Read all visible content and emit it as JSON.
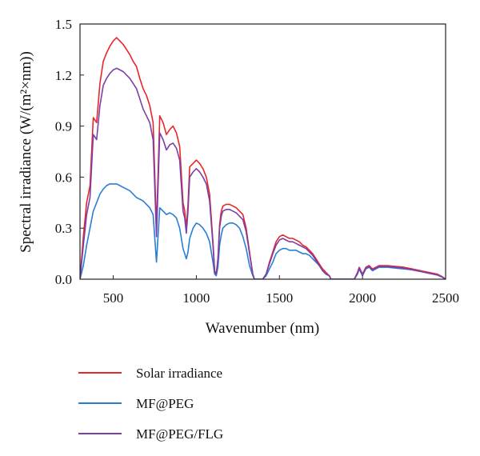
{
  "chart_data": {
    "type": "line",
    "title": "",
    "xlabel": "Wavenumber (nm)",
    "ylabel": "Spectral irradiance (W/(m²×nm))",
    "xlim": [
      300,
      2500
    ],
    "ylim": [
      0.0,
      1.5
    ],
    "xticks": [
      500,
      1000,
      1500,
      2000,
      2500
    ],
    "xtick_labels": [
      "500",
      "1000",
      "1500",
      "2000",
      "2500"
    ],
    "yticks": [
      0.0,
      0.3,
      0.6,
      0.9,
      1.2,
      1.5
    ],
    "ytick_labels": [
      "0.0",
      "0.3",
      "0.6",
      "0.9",
      "1.2",
      "1.5"
    ],
    "grid": false,
    "legend_position": "below",
    "series": [
      {
        "name": "Solar irradiance",
        "color": "#e8262a",
        "x": [
          300,
          320,
          340,
          360,
          380,
          400,
          420,
          440,
          460,
          480,
          500,
          520,
          540,
          560,
          580,
          600,
          620,
          640,
          660,
          680,
          700,
          720,
          740,
          760,
          780,
          800,
          820,
          840,
          860,
          880,
          900,
          920,
          930,
          940,
          950,
          960,
          980,
          1000,
          1020,
          1040,
          1060,
          1080,
          1100,
          1110,
          1120,
          1130,
          1140,
          1150,
          1160,
          1180,
          1200,
          1220,
          1240,
          1260,
          1280,
          1300,
          1320,
          1340,
          1350,
          1360,
          1370,
          1380,
          1400,
          1420,
          1440,
          1460,
          1480,
          1500,
          1520,
          1540,
          1560,
          1580,
          1600,
          1620,
          1640,
          1660,
          1680,
          1700,
          1720,
          1740,
          1760,
          1780,
          1800,
          1810,
          1820,
          1850,
          1900,
          1950,
          1970,
          1980,
          1990,
          2000,
          2020,
          2040,
          2060,
          2080,
          2100,
          2150,
          2200,
          2250,
          2300,
          2350,
          2400,
          2450,
          2480,
          2500
        ],
        "y": [
          0.0,
          0.25,
          0.45,
          0.55,
          0.95,
          0.92,
          1.15,
          1.28,
          1.33,
          1.37,
          1.4,
          1.42,
          1.4,
          1.38,
          1.35,
          1.32,
          1.28,
          1.25,
          1.18,
          1.12,
          1.08,
          1.02,
          0.92,
          0.3,
          0.96,
          0.92,
          0.85,
          0.88,
          0.9,
          0.86,
          0.78,
          0.45,
          0.4,
          0.3,
          0.44,
          0.66,
          0.68,
          0.7,
          0.68,
          0.65,
          0.6,
          0.5,
          0.22,
          0.05,
          0.03,
          0.12,
          0.32,
          0.4,
          0.43,
          0.44,
          0.44,
          0.43,
          0.42,
          0.4,
          0.38,
          0.3,
          0.16,
          0.03,
          0.0,
          0.0,
          0.0,
          0.0,
          0.0,
          0.03,
          0.1,
          0.16,
          0.22,
          0.25,
          0.26,
          0.25,
          0.24,
          0.24,
          0.23,
          0.22,
          0.2,
          0.19,
          0.17,
          0.15,
          0.12,
          0.09,
          0.06,
          0.04,
          0.02,
          0.0,
          0.0,
          0.0,
          0.0,
          0.0,
          0.04,
          0.07,
          0.05,
          0.03,
          0.07,
          0.08,
          0.06,
          0.07,
          0.08,
          0.08,
          0.075,
          0.07,
          0.06,
          0.05,
          0.04,
          0.03,
          0.015,
          0.0
        ]
      },
      {
        "name": "MF@PEG",
        "color": "#2a7fd4",
        "x": [
          300,
          320,
          340,
          360,
          380,
          400,
          420,
          440,
          460,
          480,
          500,
          520,
          540,
          560,
          580,
          600,
          620,
          640,
          660,
          680,
          700,
          720,
          740,
          760,
          780,
          800,
          820,
          840,
          860,
          880,
          900,
          920,
          930,
          940,
          950,
          960,
          980,
          1000,
          1020,
          1040,
          1060,
          1080,
          1100,
          1110,
          1120,
          1130,
          1140,
          1150,
          1160,
          1180,
          1200,
          1220,
          1240,
          1260,
          1280,
          1300,
          1320,
          1340,
          1350,
          1360,
          1370,
          1380,
          1400,
          1420,
          1440,
          1460,
          1480,
          1500,
          1520,
          1540,
          1560,
          1580,
          1600,
          1620,
          1640,
          1660,
          1680,
          1700,
          1720,
          1740,
          1760,
          1780,
          1800,
          1810,
          1820,
          1850,
          1900,
          1950,
          1970,
          1980,
          1990,
          2000,
          2020,
          2040,
          2060,
          2080,
          2100,
          2150,
          2200,
          2250,
          2300,
          2350,
          2400,
          2450,
          2480,
          2500
        ],
        "y": [
          0.0,
          0.08,
          0.2,
          0.3,
          0.4,
          0.45,
          0.5,
          0.53,
          0.55,
          0.56,
          0.56,
          0.56,
          0.55,
          0.54,
          0.53,
          0.52,
          0.5,
          0.48,
          0.47,
          0.46,
          0.44,
          0.42,
          0.38,
          0.1,
          0.42,
          0.4,
          0.38,
          0.39,
          0.38,
          0.36,
          0.3,
          0.18,
          0.15,
          0.12,
          0.16,
          0.24,
          0.3,
          0.33,
          0.32,
          0.3,
          0.27,
          0.22,
          0.1,
          0.03,
          0.02,
          0.07,
          0.2,
          0.26,
          0.3,
          0.32,
          0.33,
          0.33,
          0.32,
          0.3,
          0.25,
          0.18,
          0.08,
          0.02,
          0.0,
          0.0,
          0.0,
          0.0,
          0.0,
          0.02,
          0.06,
          0.1,
          0.15,
          0.17,
          0.18,
          0.18,
          0.17,
          0.17,
          0.17,
          0.16,
          0.15,
          0.15,
          0.14,
          0.12,
          0.1,
          0.08,
          0.05,
          0.03,
          0.02,
          0.0,
          0.0,
          0.0,
          0.0,
          0.0,
          0.03,
          0.06,
          0.04,
          0.02,
          0.06,
          0.07,
          0.05,
          0.06,
          0.07,
          0.07,
          0.065,
          0.06,
          0.055,
          0.045,
          0.035,
          0.025,
          0.012,
          0.0
        ]
      },
      {
        "name": "MF@PEG/FLG",
        "color": "#7b3fa8",
        "x": [
          300,
          320,
          340,
          360,
          380,
          400,
          420,
          440,
          460,
          480,
          500,
          520,
          540,
          560,
          580,
          600,
          620,
          640,
          660,
          680,
          700,
          720,
          740,
          760,
          780,
          800,
          820,
          840,
          860,
          880,
          900,
          920,
          930,
          940,
          950,
          960,
          980,
          1000,
          1020,
          1040,
          1060,
          1080,
          1100,
          1110,
          1120,
          1130,
          1140,
          1150,
          1160,
          1180,
          1200,
          1220,
          1240,
          1260,
          1280,
          1300,
          1320,
          1340,
          1350,
          1360,
          1370,
          1380,
          1400,
          1420,
          1440,
          1460,
          1480,
          1500,
          1520,
          1540,
          1560,
          1580,
          1600,
          1620,
          1640,
          1660,
          1680,
          1700,
          1720,
          1740,
          1760,
          1780,
          1800,
          1810,
          1820,
          1850,
          1900,
          1950,
          1970,
          1980,
          1990,
          2000,
          2020,
          2040,
          2060,
          2080,
          2100,
          2150,
          2200,
          2250,
          2300,
          2350,
          2400,
          2450,
          2480,
          2500
        ],
        "y": [
          0.0,
          0.2,
          0.38,
          0.48,
          0.85,
          0.82,
          1.02,
          1.14,
          1.18,
          1.21,
          1.23,
          1.24,
          1.23,
          1.22,
          1.2,
          1.18,
          1.15,
          1.12,
          1.06,
          1.0,
          0.96,
          0.92,
          0.82,
          0.25,
          0.86,
          0.82,
          0.76,
          0.79,
          0.8,
          0.77,
          0.7,
          0.4,
          0.36,
          0.27,
          0.4,
          0.6,
          0.63,
          0.65,
          0.63,
          0.6,
          0.56,
          0.46,
          0.2,
          0.04,
          0.03,
          0.11,
          0.3,
          0.37,
          0.4,
          0.41,
          0.41,
          0.4,
          0.39,
          0.37,
          0.35,
          0.28,
          0.15,
          0.03,
          0.0,
          0.0,
          0.0,
          0.0,
          0.0,
          0.03,
          0.09,
          0.15,
          0.2,
          0.23,
          0.24,
          0.23,
          0.22,
          0.22,
          0.21,
          0.2,
          0.19,
          0.18,
          0.16,
          0.14,
          0.11,
          0.08,
          0.05,
          0.03,
          0.02,
          0.0,
          0.0,
          0.0,
          0.0,
          0.0,
          0.035,
          0.065,
          0.045,
          0.025,
          0.065,
          0.075,
          0.055,
          0.065,
          0.075,
          0.075,
          0.07,
          0.065,
          0.055,
          0.045,
          0.035,
          0.025,
          0.012,
          0.0
        ]
      }
    ]
  }
}
